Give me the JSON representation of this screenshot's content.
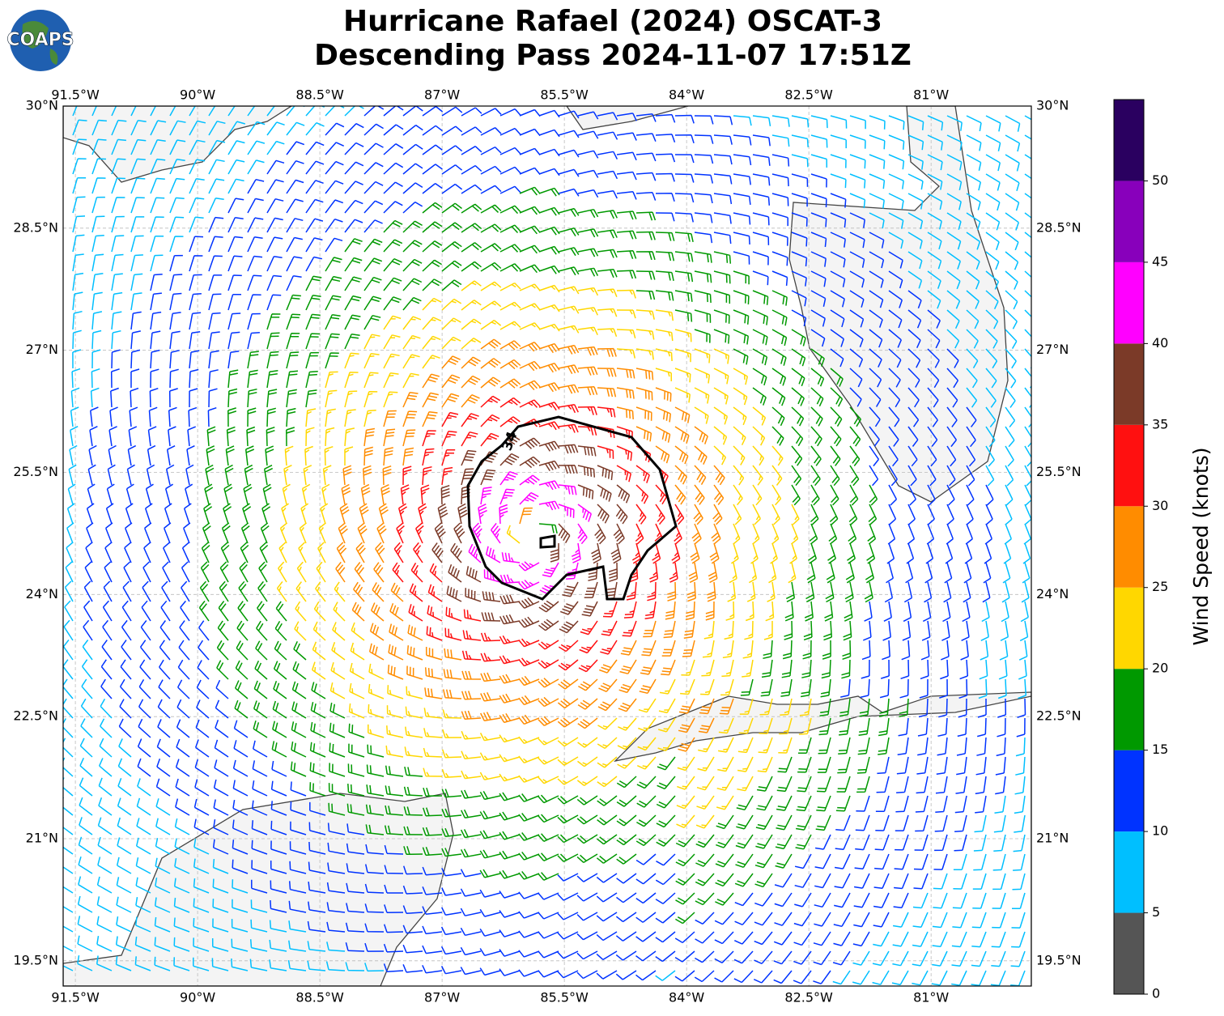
{
  "chart_data": {
    "type": "map",
    "logo": "COAPS",
    "title": "Hurricane Rafael (2024) OSCAT-3",
    "subtitle": "Descending Pass 2024-11-07 17:51Z",
    "xlim": [
      -91.65,
      -79.77
    ],
    "ylim": [
      19.19,
      30
    ],
    "xticks": [
      {
        "value": -91.5,
        "label": "91.5°W"
      },
      {
        "value": -90,
        "label": "90°W"
      },
      {
        "value": -88.5,
        "label": "88.5°W"
      },
      {
        "value": -87,
        "label": "87°W"
      },
      {
        "value": -85.5,
        "label": "85.5°W"
      },
      {
        "value": -84,
        "label": "84°W"
      },
      {
        "value": -82.5,
        "label": "82.5°W"
      },
      {
        "value": -81,
        "label": "81°W"
      }
    ],
    "yticks": [
      {
        "value": 30,
        "label": "30°N"
      },
      {
        "value": 28.5,
        "label": "28.5°N"
      },
      {
        "value": 27,
        "label": "27°N"
      },
      {
        "value": 25.5,
        "label": "25.5°N"
      },
      {
        "value": 24,
        "label": "24°N"
      },
      {
        "value": 22.5,
        "label": "22.5°N"
      },
      {
        "value": 21,
        "label": "21°N"
      },
      {
        "value": 19.5,
        "label": "19.5°N"
      }
    ],
    "grid": true,
    "contour_label": "34",
    "colorbar": {
      "label": "Wind Speed (knots)",
      "bounds": [
        0,
        5,
        10,
        15,
        20,
        25,
        30,
        35,
        40,
        45,
        50,
        55
      ],
      "colors": [
        "#555555",
        "#00bfff",
        "#0033ff",
        "#009900",
        "#ffd700",
        "#ff8c00",
        "#ff1010",
        "#7b3a28",
        "#ff00ff",
        "#8800bb",
        "#2a0060"
      ],
      "ticks": [
        0,
        5,
        10,
        15,
        20,
        25,
        30,
        35,
        40,
        45,
        50
      ]
    }
  }
}
